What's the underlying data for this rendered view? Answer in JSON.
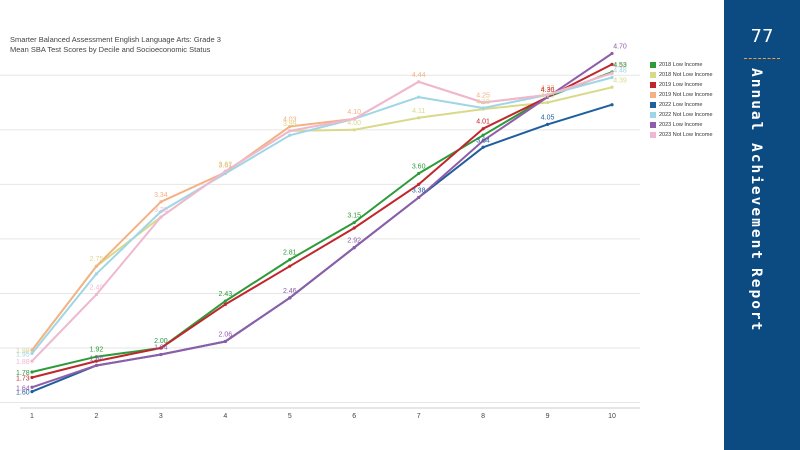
{
  "chart_data": {
    "type": "line",
    "title": "Smarter Balanced Assessment English Language Arts: Grade 3",
    "subtitle": "Mean SBA Test Scores by Decile and Socioeconomic Status",
    "xlabel": "",
    "ylabel": "",
    "x": [
      1,
      2,
      3,
      4,
      5,
      6,
      7,
      8,
      9,
      10
    ],
    "grid": true,
    "series": [
      {
        "name": "2018 Low Income",
        "color": "#2e9b3a",
        "values": [
          1.78,
          1.92,
          2.0,
          2.43,
          2.81,
          3.15,
          3.6,
          3.95,
          4.3,
          4.53
        ]
      },
      {
        "name": "2018 Not Low Income",
        "color": "#d9d98a",
        "values": [
          1.98,
          2.75,
          3.2,
          3.62,
          3.99,
          4.0,
          4.11,
          4.19,
          4.25,
          4.39
        ]
      },
      {
        "name": "2019 Low Income",
        "color": "#c0272d",
        "values": [
          1.73,
          1.88,
          2.0,
          2.4,
          2.75,
          3.1,
          3.5,
          4.01,
          4.3,
          4.6
        ]
      },
      {
        "name": "2019 Not Low Income",
        "color": "#f4b183",
        "values": [
          1.98,
          2.75,
          3.34,
          3.61,
          4.03,
          4.1,
          4.44,
          4.25,
          4.32,
          4.52
        ]
      },
      {
        "name": "2022 Low Income",
        "color": "#1f5f9e",
        "values": [
          1.6,
          1.84,
          1.94,
          2.06,
          2.46,
          2.92,
          3.38,
          3.84,
          4.05,
          4.23
        ]
      },
      {
        "name": "2022 Not Low Income",
        "color": "#9fd6e6",
        "values": [
          1.95,
          2.68,
          3.25,
          3.6,
          3.95,
          4.1,
          4.3,
          4.2,
          4.32,
          4.48
        ]
      },
      {
        "name": "2023 Low Income",
        "color": "#8e5ea8",
        "values": [
          1.64,
          1.84,
          1.94,
          2.06,
          2.46,
          2.92,
          3.38,
          3.9,
          4.3,
          4.7
        ]
      },
      {
        "name": "2023 Not Low Income",
        "color": "#f0b8d0",
        "values": [
          1.88,
          2.49,
          3.2,
          3.62,
          3.99,
          4.1,
          4.44,
          4.25,
          4.32,
          4.52
        ]
      }
    ],
    "data_labels": [
      {
        "series": 1,
        "i": 0,
        "text": "1.98"
      },
      {
        "series": 5,
        "i": 0,
        "text": "1.95"
      },
      {
        "series": 7,
        "i": 0,
        "text": "1.88"
      },
      {
        "series": 0,
        "i": 0,
        "text": "1.78"
      },
      {
        "series": 2,
        "i": 0,
        "text": "1.73"
      },
      {
        "series": 4,
        "i": 0,
        "text": "1.60"
      },
      {
        "series": 6,
        "i": 0,
        "text": "1.64"
      },
      {
        "series": 1,
        "i": 1,
        "text": "2.75"
      },
      {
        "series": 7,
        "i": 1,
        "text": "2.49"
      },
      {
        "series": 0,
        "i": 1,
        "text": "1.92"
      },
      {
        "series": 6,
        "i": 1,
        "text": "1.84"
      },
      {
        "series": 3,
        "i": 2,
        "text": "3.34"
      },
      {
        "series": 7,
        "i": 2,
        "text": "3.20"
      },
      {
        "series": 0,
        "i": 2,
        "text": "2.00"
      },
      {
        "series": 6,
        "i": 2,
        "text": "1.94"
      },
      {
        "series": 3,
        "i": 3,
        "text": "3.61"
      },
      {
        "series": 1,
        "i": 3,
        "text": "3.62"
      },
      {
        "series": 0,
        "i": 3,
        "text": "2.43"
      },
      {
        "series": 6,
        "i": 3,
        "text": "2.06"
      },
      {
        "series": 3,
        "i": 4,
        "text": "4.03"
      },
      {
        "series": 1,
        "i": 4,
        "text": "3.99"
      },
      {
        "series": 0,
        "i": 4,
        "text": "2.81"
      },
      {
        "series": 6,
        "i": 4,
        "text": "2.46"
      },
      {
        "series": 3,
        "i": 5,
        "text": "4.10"
      },
      {
        "series": 1,
        "i": 5,
        "text": "4.00"
      },
      {
        "series": 0,
        "i": 5,
        "text": "3.15"
      },
      {
        "series": 6,
        "i": 5,
        "text": "2.92"
      },
      {
        "series": 3,
        "i": 6,
        "text": "4.44"
      },
      {
        "series": 1,
        "i": 6,
        "text": "4.11"
      },
      {
        "series": 0,
        "i": 6,
        "text": "3.60"
      },
      {
        "series": 4,
        "i": 6,
        "text": "3.38"
      },
      {
        "series": 3,
        "i": 7,
        "text": "4.25"
      },
      {
        "series": 1,
        "i": 7,
        "text": "4.19"
      },
      {
        "series": 2,
        "i": 7,
        "text": "4.01"
      },
      {
        "series": 4,
        "i": 7,
        "text": "3.84"
      },
      {
        "series": 3,
        "i": 8,
        "text": "4.32"
      },
      {
        "series": 1,
        "i": 8,
        "text": "4.25"
      },
      {
        "series": 2,
        "i": 8,
        "text": "4.30"
      },
      {
        "series": 4,
        "i": 8,
        "text": "4.05"
      },
      {
        "series": 7,
        "i": 9,
        "text": "4.52"
      },
      {
        "series": 5,
        "i": 9,
        "text": "4.48"
      },
      {
        "series": 1,
        "i": 9,
        "text": "4.39"
      },
      {
        "series": 6,
        "i": 9,
        "text": "4.70"
      },
      {
        "series": 0,
        "i": 9,
        "text": "4.53"
      }
    ]
  },
  "side_panel": {
    "page_number": "77",
    "title_words": [
      "Annual",
      "Achievement",
      "Report"
    ]
  }
}
